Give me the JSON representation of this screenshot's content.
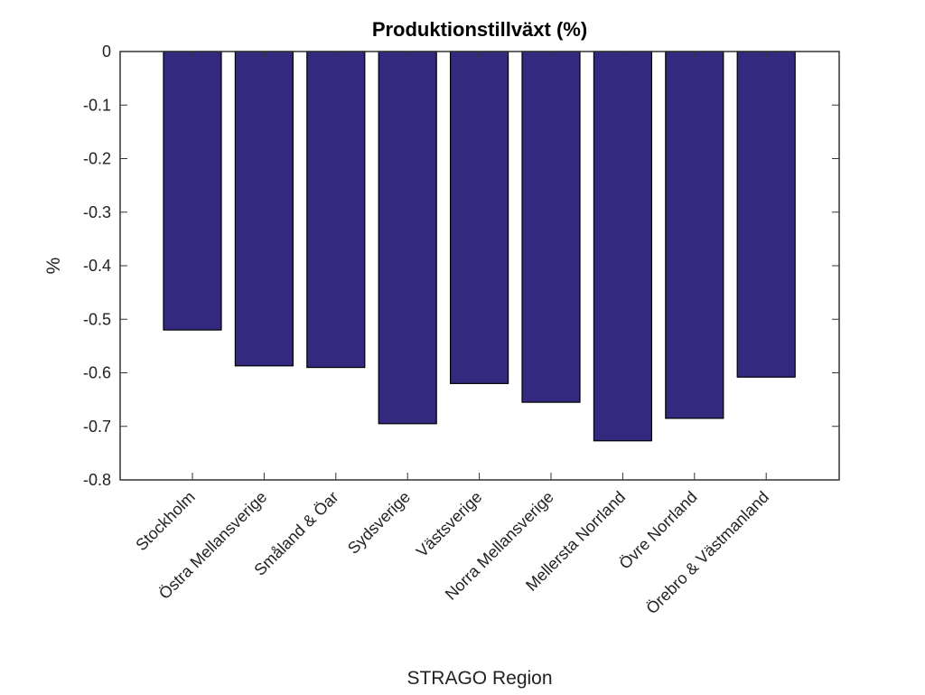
{
  "chart_data": {
    "type": "bar",
    "title": "Produktionstillväxt (%)",
    "xlabel": "STRAGO Region",
    "ylabel": "%",
    "ylim": [
      -0.8,
      0
    ],
    "yticks": [
      "0",
      "-0.1",
      "-0.2",
      "-0.3",
      "-0.4",
      "-0.5",
      "-0.6",
      "-0.7",
      "-0.8"
    ],
    "ytick_values": [
      0,
      -0.1,
      -0.2,
      -0.3,
      -0.4,
      -0.5,
      -0.6,
      -0.7,
      -0.8
    ],
    "categories": [
      "Stockholm",
      "Östra Mellansverige",
      "Småland & Öar",
      "Sydsverige",
      "Västsverige",
      "Norra Mellansverige",
      "Mellersta Norrland",
      "Övre Norrland",
      "Örebro & Västmanland"
    ],
    "values": [
      -0.52,
      -0.587,
      -0.59,
      -0.695,
      -0.62,
      -0.655,
      -0.727,
      -0.685,
      -0.608
    ],
    "bar_color": "#332a80",
    "grid": false,
    "legend": "none"
  }
}
